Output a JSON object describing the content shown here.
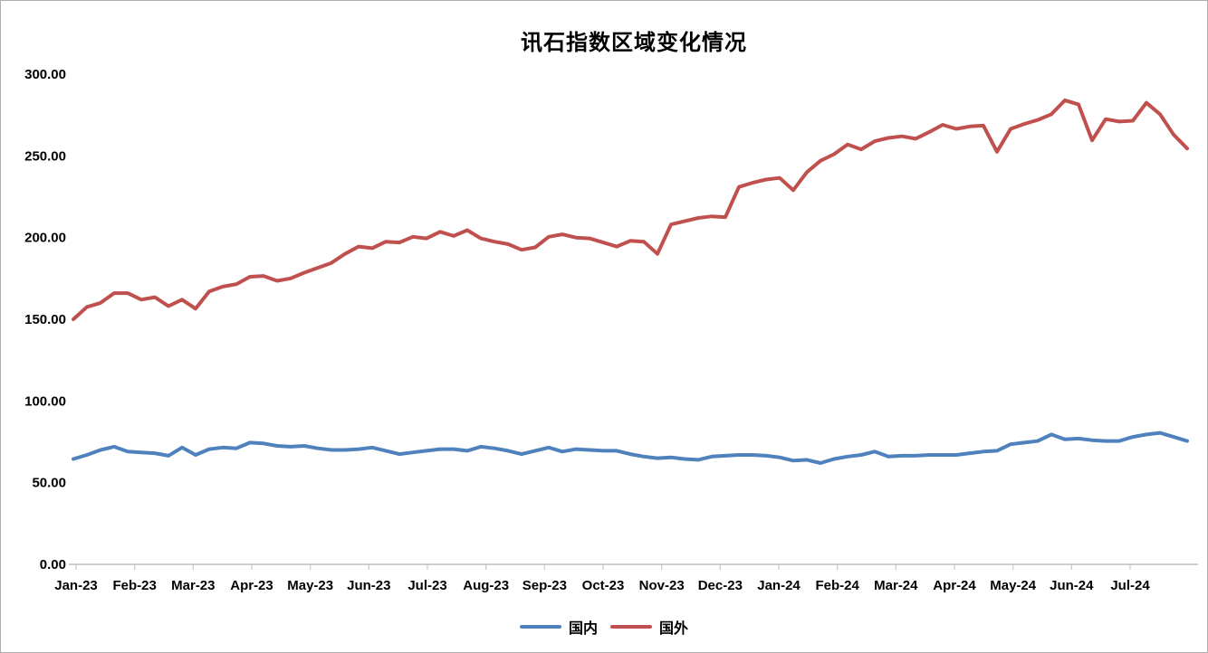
{
  "chart_data": {
    "type": "line",
    "title": "讯石指数区域变化情况",
    "x_axis": {
      "categories": [
        "Jan-23",
        "Feb-23",
        "Mar-23",
        "Apr-23",
        "May-23",
        "Jun-23",
        "Jul-23",
        "Aug-23",
        "Sep-23",
        "Oct-23",
        "Nov-23",
        "Dec-23",
        "Jan-24",
        "Feb-24",
        "Mar-24",
        "Apr-24",
        "May-24",
        "Jun-24",
        "Jul-24"
      ]
    },
    "y_axis": {
      "min": 0,
      "max": 300,
      "step": 50,
      "tick_labels": [
        "0.00",
        "50.00",
        "100.00",
        "150.00",
        "200.00",
        "250.00",
        "300.00"
      ]
    },
    "grid": "off",
    "legend_position": "bottom",
    "axis_color": "#bfbfbf",
    "series": [
      {
        "name": "国内",
        "color": "#4F81BD",
        "values": [
          64.5,
          67,
          70,
          72,
          69,
          68.5,
          68,
          66.5,
          71.5,
          67,
          70.5,
          71.5,
          71,
          74.5,
          74,
          72.5,
          72,
          72.5,
          71,
          70,
          70,
          70.5,
          71.5,
          69.5,
          67.5,
          68.5,
          69.5,
          70.5,
          70.5,
          69.5,
          72,
          71,
          69.5,
          67.5,
          69.5,
          71.5,
          69,
          70.5,
          70,
          69.5,
          69.5,
          67.5,
          66,
          65,
          65.5,
          64.5,
          64,
          66,
          66.5,
          67,
          67,
          66.5,
          65.5,
          63.5,
          64,
          62,
          64.5,
          66,
          67,
          69,
          66,
          66.5,
          66.5,
          67,
          67,
          67,
          68,
          69,
          69.5,
          73.5,
          74.5,
          75.5,
          79.5,
          76.5,
          77,
          76,
          75.5,
          75.5,
          78,
          79.5,
          80.5,
          78,
          75.5
        ]
      },
      {
        "name": "国外",
        "color": "#C0504D",
        "values": [
          150,
          157.5,
          160,
          166,
          166,
          162,
          163.5,
          158,
          162,
          156.5,
          167,
          170,
          171.5,
          176,
          176.5,
          173.5,
          175,
          178.5,
          181.5,
          184.5,
          190,
          194.5,
          193.5,
          197.5,
          197,
          200.5,
          199.5,
          203.5,
          201,
          204.5,
          199.5,
          197.5,
          196,
          192.5,
          194,
          200.5,
          202,
          200,
          199.5,
          197,
          194.5,
          198,
          197.5,
          190,
          208,
          210,
          212,
          213,
          212.5,
          231,
          233.5,
          235.5,
          236.5,
          229,
          240,
          247,
          251,
          257,
          254,
          259,
          261,
          262,
          260.5,
          264.5,
          269,
          266.5,
          268,
          268.5,
          252.5,
          266.5,
          269.5,
          272,
          275.5,
          284,
          281.5,
          259.5,
          272.5,
          271,
          271.5,
          282.5,
          275.5,
          263,
          254.5
        ]
      }
    ]
  }
}
